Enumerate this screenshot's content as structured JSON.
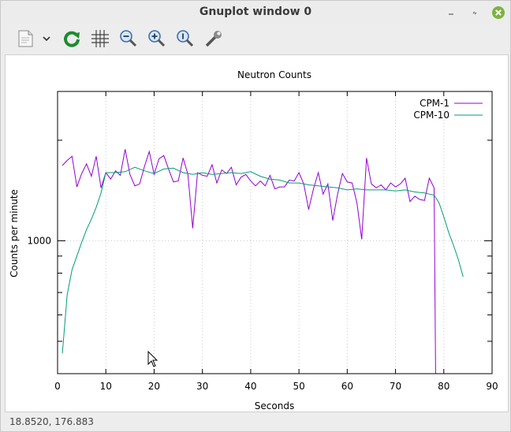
{
  "window": {
    "title": "Gnuplot window 0"
  },
  "toolbar": {
    "items": [
      {
        "icon": "export-icon"
      },
      {
        "icon": "dropdown-chevron-icon"
      },
      {
        "icon": "replot-icon"
      },
      {
        "icon": "grid-icon"
      },
      {
        "icon": "zoom-out-icon"
      },
      {
        "icon": "zoom-in-icon"
      },
      {
        "icon": "zoom-reset-icon"
      },
      {
        "icon": "settings-wrench-icon"
      }
    ]
  },
  "status": {
    "coords": "18.8520,  176.883"
  },
  "colors": {
    "cpm1": "#9400d3",
    "cpm10": "#009e73",
    "grid": "#c8c8c8",
    "replot": "#1e8a2e"
  },
  "chart_data": {
    "type": "line",
    "title": "Neutron Counts",
    "xlabel": "Seconds",
    "ylabel": "Counts per minute",
    "xlim": [
      0,
      90
    ],
    "ylim": [
      400,
      2800
    ],
    "yscale": "log",
    "xticks": [
      "0",
      "10",
      "20",
      "30",
      "40",
      "50",
      "60",
      "70",
      "80",
      "90"
    ],
    "yticks_labeled": [
      {
        "value": 1000,
        "label": "1000"
      }
    ],
    "grid": true,
    "legend_position": "top-right",
    "series": [
      {
        "name": "CPM-1",
        "color": "#9400d3",
        "x": [
          1,
          2,
          3,
          4,
          5,
          6,
          7,
          8,
          9,
          10,
          11,
          12,
          13,
          14,
          15,
          16,
          17,
          18,
          19,
          20,
          21,
          22,
          23,
          24,
          25,
          26,
          27,
          28,
          29,
          30,
          31,
          32,
          33,
          34,
          35,
          36,
          37,
          38,
          39,
          40,
          41,
          42,
          43,
          44,
          45,
          46,
          47,
          48,
          49,
          50,
          51,
          52,
          53,
          54,
          55,
          56,
          57,
          58,
          59,
          60,
          61,
          62,
          63,
          64,
          65,
          66,
          67,
          68,
          69,
          70,
          71,
          72,
          73,
          74,
          75,
          76,
          77,
          78,
          78.3
        ],
        "y": [
          1680,
          1740,
          1790,
          1450,
          1590,
          1700,
          1560,
          1790,
          1440,
          1600,
          1530,
          1620,
          1570,
          1880,
          1580,
          1460,
          1480,
          1670,
          1850,
          1580,
          1760,
          1800,
          1640,
          1500,
          1510,
          1770,
          1580,
          1090,
          1600,
          1570,
          1560,
          1690,
          1490,
          1630,
          1590,
          1660,
          1470,
          1550,
          1580,
          1510,
          1460,
          1510,
          1460,
          1570,
          1430,
          1450,
          1450,
          1520,
          1510,
          1600,
          1480,
          1240,
          1430,
          1600,
          1380,
          1480,
          1150,
          1380,
          1590,
          1500,
          1490,
          1300,
          1010,
          1770,
          1480,
          1440,
          1470,
          1420,
          1490,
          1450,
          1480,
          1540,
          1310,
          1360,
          1330,
          1320,
          1540,
          1440,
          400
        ]
      },
      {
        "name": "CPM-10",
        "color": "#009e73",
        "x": [
          1,
          2,
          3,
          4,
          5,
          6,
          7,
          8,
          9,
          10,
          12,
          14,
          16,
          18,
          20,
          22,
          24,
          26,
          28,
          30,
          32,
          34,
          36,
          38,
          40,
          42,
          44,
          46,
          48,
          50,
          52,
          54,
          56,
          58,
          60,
          62,
          64,
          66,
          68,
          70,
          72,
          74,
          76,
          77,
          78,
          79,
          80,
          81,
          82,
          83,
          84
        ],
        "y": [
          460,
          690,
          820,
          900,
          990,
          1080,
          1160,
          1260,
          1390,
          1600,
          1600,
          1610,
          1660,
          1620,
          1590,
          1640,
          1650,
          1600,
          1580,
          1600,
          1580,
          1590,
          1600,
          1590,
          1610,
          1560,
          1530,
          1520,
          1490,
          1490,
          1470,
          1460,
          1450,
          1440,
          1420,
          1430,
          1420,
          1420,
          1420,
          1410,
          1420,
          1400,
          1390,
          1380,
          1370,
          1300,
          1180,
          1060,
          970,
          880,
          780
        ]
      }
    ]
  }
}
